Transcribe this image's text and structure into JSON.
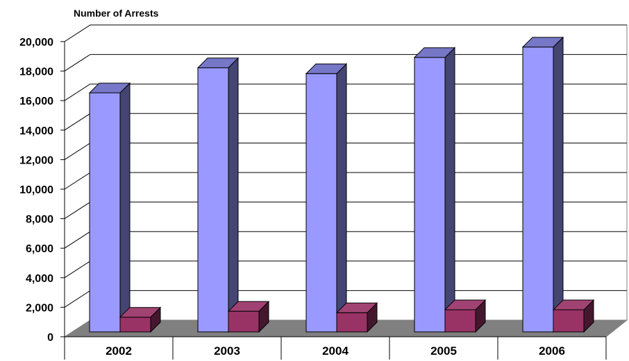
{
  "chart_data": {
    "type": "bar",
    "title": "",
    "ylabel": "Number of Arrests",
    "xlabel": "",
    "categories": [
      "2002",
      "2003",
      "2004",
      "2005",
      "2006"
    ],
    "series": [
      {
        "values": [
          16200,
          17900,
          17500,
          18600,
          19300
        ],
        "color": "#9999ff"
      },
      {
        "values": [
          1000,
          1400,
          1300,
          1500,
          1500
        ],
        "color": "#993366"
      }
    ],
    "ylim": [
      0,
      20000
    ],
    "yticks": [
      0,
      2000,
      4000,
      6000,
      8000,
      10000,
      12000,
      14000,
      16000,
      18000,
      20000
    ],
    "ytick_labels": [
      "0",
      "2,000",
      "4,000",
      "6,000",
      "8,000",
      "10,000",
      "12,000",
      "14,000",
      "16,000",
      "18,000",
      "20,000"
    ],
    "grid": true,
    "legend": "none",
    "style": "3d-column"
  }
}
